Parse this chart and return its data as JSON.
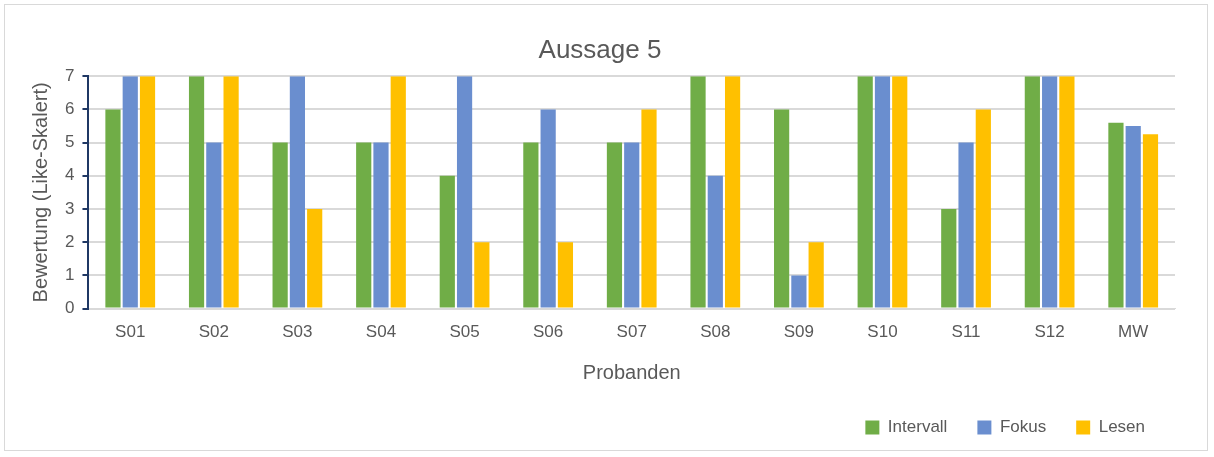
{
  "chart_data": {
    "type": "bar",
    "title": "Aussage 5",
    "xlabel": "Probanden",
    "ylabel": "Bewertung (Like-Skalert)",
    "categories": [
      "S01",
      "S02",
      "S03",
      "S04",
      "S05",
      "S06",
      "S07",
      "S08",
      "S09",
      "S10",
      "S11",
      "S12",
      "MW"
    ],
    "series": [
      {
        "name": "Intervall",
        "color": "#70ad47",
        "values": [
          6,
          7,
          5,
          5,
          4,
          5,
          5,
          7,
          6,
          7,
          3,
          7,
          5.6
        ]
      },
      {
        "name": "Fokus",
        "color": "#6a8ecf",
        "values": [
          7,
          5,
          7,
          5,
          7,
          6,
          5,
          4,
          1,
          7,
          5,
          7,
          5.5
        ]
      },
      {
        "name": "Lesen",
        "color": "#ffc000",
        "values": [
          7,
          7,
          3,
          7,
          2,
          2,
          6,
          7,
          2,
          7,
          6,
          7,
          5.25
        ]
      }
    ],
    "ylim": [
      0,
      7
    ],
    "yticks": [
      0,
      1,
      2,
      3,
      4,
      5,
      6,
      7
    ],
    "grid": "y",
    "legend": "bottom right"
  }
}
